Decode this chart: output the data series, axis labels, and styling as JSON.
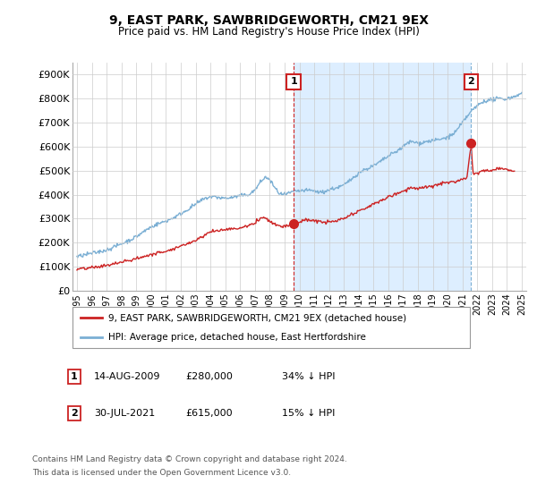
{
  "title": "9, EAST PARK, SAWBRIDGEWORTH, CM21 9EX",
  "subtitle": "Price paid vs. HM Land Registry's House Price Index (HPI)",
  "xlim_start": 1994.7,
  "xlim_end": 2025.3,
  "ylim": [
    0,
    950000
  ],
  "yticks": [
    0,
    100000,
    200000,
    300000,
    400000,
    500000,
    600000,
    700000,
    800000,
    900000
  ],
  "ytick_labels": [
    "£0",
    "£100K",
    "£200K",
    "£300K",
    "£400K",
    "£500K",
    "£600K",
    "£700K",
    "£800K",
    "£900K"
  ],
  "xticks": [
    1995,
    1996,
    1997,
    1998,
    1999,
    2000,
    2001,
    2002,
    2003,
    2004,
    2005,
    2006,
    2007,
    2008,
    2009,
    2010,
    2011,
    2012,
    2013,
    2014,
    2015,
    2016,
    2017,
    2018,
    2019,
    2020,
    2021,
    2022,
    2023,
    2024,
    2025
  ],
  "hpi_color": "#7bafd4",
  "price_color": "#cc2222",
  "shade_color": "#ddeeff",
  "transaction1_x": 2009.617,
  "transaction1_y": 280000,
  "transaction1_label": "1",
  "transaction1_date": "14-AUG-2009",
  "transaction1_price": "£280,000",
  "transaction1_note": "34% ↓ HPI",
  "transaction2_x": 2021.578,
  "transaction2_y": 615000,
  "transaction2_label": "2",
  "transaction2_date": "30-JUL-2021",
  "transaction2_price": "£615,000",
  "transaction2_note": "15% ↓ HPI",
  "legend_line1": "9, EAST PARK, SAWBRIDGEWORTH, CM21 9EX (detached house)",
  "legend_line2": "HPI: Average price, detached house, East Hertfordshire",
  "footer1": "Contains HM Land Registry data © Crown copyright and database right 2024.",
  "footer2": "This data is licensed under the Open Government Licence v3.0.",
  "annotation_box_color": "#cc2222"
}
